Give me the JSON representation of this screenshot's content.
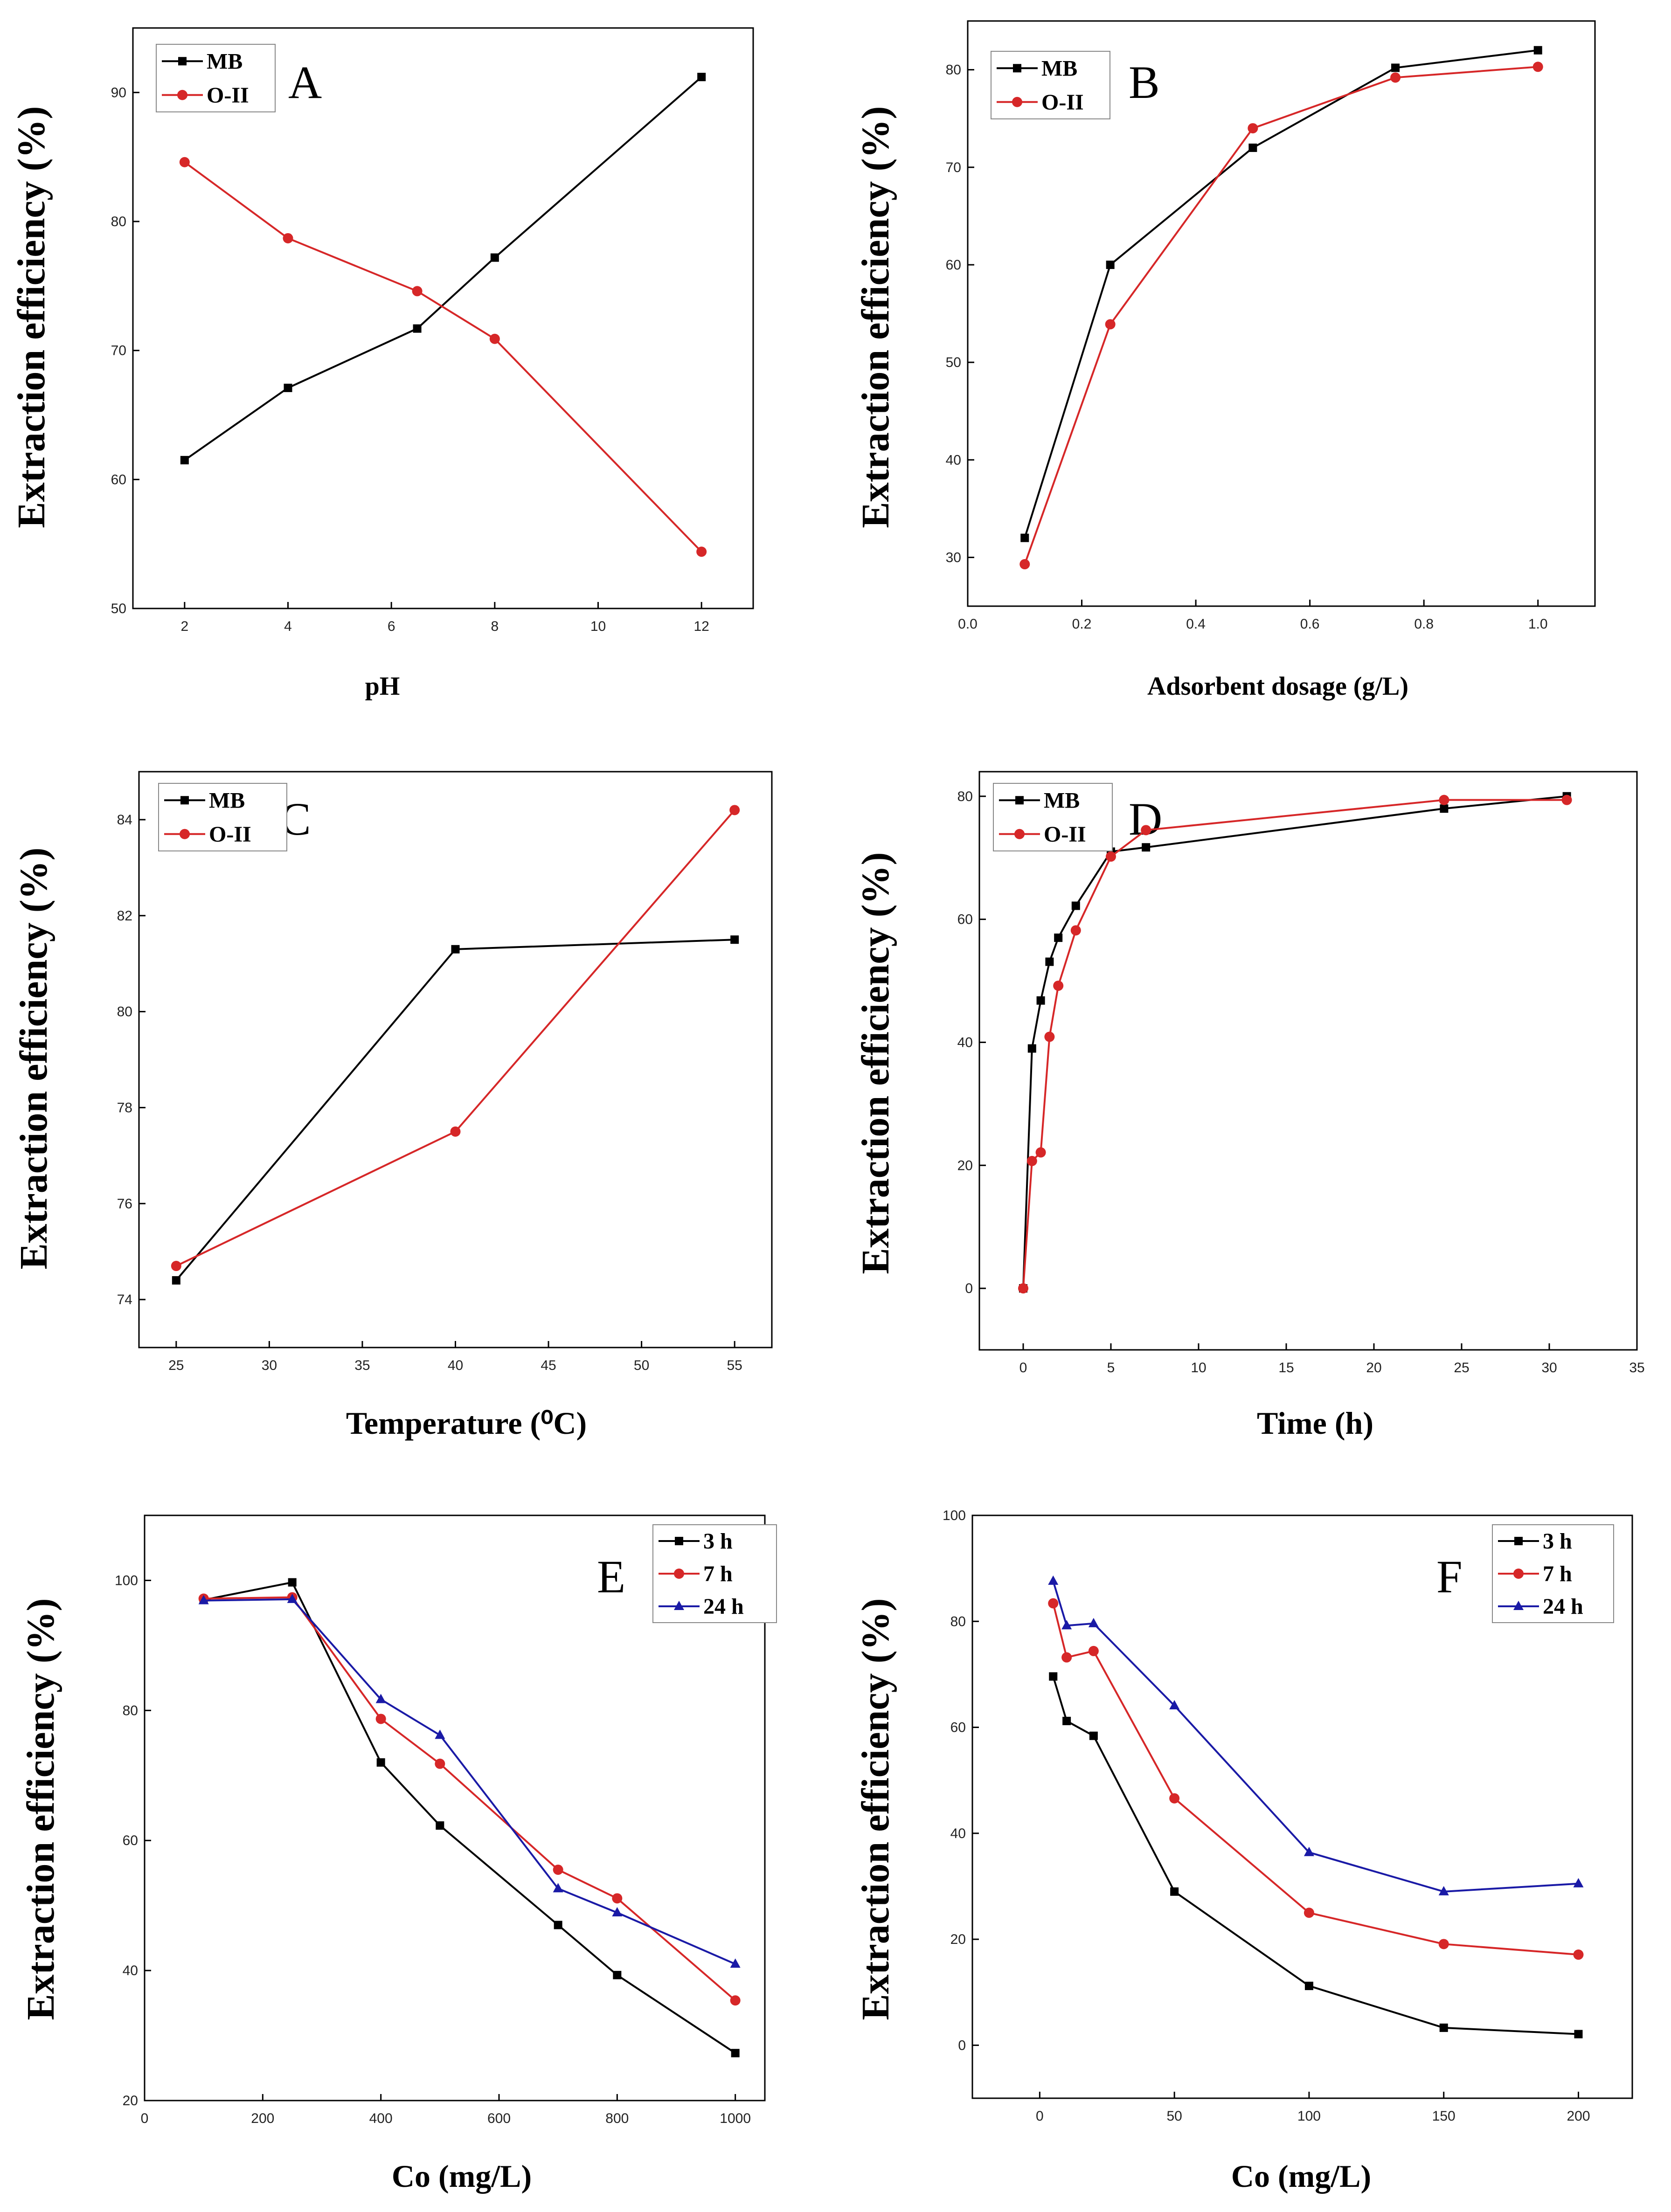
{
  "chart_data": [
    {
      "id": "A",
      "type": "line",
      "title": "",
      "panel_label": "A",
      "xlabel": "pH",
      "ylabel": "Extraction efficiency (%)",
      "xlim": [
        1,
        13
      ],
      "ylim": [
        50,
        95
      ],
      "xticks": [
        2,
        4,
        6,
        8,
        10,
        12
      ],
      "yticks": [
        50,
        60,
        70,
        80,
        90
      ],
      "legend_position": "top-left",
      "series": [
        {
          "name": "MB",
          "color": "#000000",
          "marker": "square",
          "x": [
            2,
            4,
            6.5,
            8,
            12
          ],
          "y": [
            61.5,
            67.1,
            71.7,
            77.2,
            91.2
          ]
        },
        {
          "name": "O-II",
          "color": "#d62728",
          "marker": "circle",
          "x": [
            2,
            4,
            6.5,
            8,
            12
          ],
          "y": [
            84.6,
            78.7,
            74.6,
            70.9,
            54.4
          ]
        }
      ]
    },
    {
      "id": "B",
      "type": "line",
      "title": "",
      "panel_label": "B",
      "xlabel": "Adsorbent dosage (g/L)",
      "ylabel": "Extraction efficiency (%)",
      "xlim": [
        0,
        1.1
      ],
      "ylim": [
        25,
        85
      ],
      "xticks": [
        0.0,
        0.2,
        0.4,
        0.6,
        0.8,
        1.0
      ],
      "xtick_labels": [
        "0.0",
        "0.2",
        "0.4",
        "0.6",
        "0.8",
        "1.0"
      ],
      "yticks": [
        30,
        40,
        50,
        60,
        70,
        80
      ],
      "legend_position": "top-left",
      "series": [
        {
          "name": "MB",
          "color": "#000000",
          "marker": "square",
          "x": [
            0.1,
            0.25,
            0.5,
            0.75,
            1.0
          ],
          "y": [
            32,
            60,
            72,
            80.2,
            82
          ]
        },
        {
          "name": "O-II",
          "color": "#d62728",
          "marker": "circle",
          "x": [
            0.1,
            0.25,
            0.5,
            0.75,
            1.0
          ],
          "y": [
            29.3,
            53.9,
            74,
            79.2,
            80.3
          ]
        }
      ]
    },
    {
      "id": "C",
      "type": "line",
      "title": "",
      "panel_label": "C",
      "xlabel": "Temperature (⁰C)",
      "ylabel": "Extraction efficiency (%)",
      "xlim": [
        23,
        57
      ],
      "ylim": [
        73,
        85
      ],
      "xticks": [
        25,
        30,
        35,
        40,
        45,
        50,
        55
      ],
      "yticks": [
        74,
        76,
        78,
        80,
        82,
        84
      ],
      "legend_position": "top-left",
      "series": [
        {
          "name": "MB",
          "color": "#000000",
          "marker": "square",
          "x": [
            25,
            40,
            55
          ],
          "y": [
            74.4,
            81.3,
            81.5
          ]
        },
        {
          "name": "O-II",
          "color": "#d62728",
          "marker": "circle",
          "x": [
            25,
            40,
            55
          ],
          "y": [
            74.7,
            77.5,
            84.2
          ]
        }
      ]
    },
    {
      "id": "D",
      "type": "line",
      "title": "",
      "panel_label": "D",
      "xlabel": "Time (h)",
      "ylabel": "Extraction efficiency (%)",
      "xlim": [
        -2.5,
        35
      ],
      "ylim": [
        -10,
        84
      ],
      "xticks": [
        0,
        5,
        10,
        15,
        20,
        25,
        30,
        35
      ],
      "yticks": [
        0,
        20,
        40,
        60,
        80
      ],
      "legend_position": "top-left",
      "series": [
        {
          "name": "MB",
          "color": "#000000",
          "marker": "square",
          "x": [
            0,
            0.5,
            1,
            1.5,
            2,
            3,
            5,
            7,
            24,
            31
          ],
          "y": [
            0,
            39,
            46.8,
            53.1,
            57,
            62.2,
            71,
            71.7,
            78,
            80
          ]
        },
        {
          "name": "O-II",
          "color": "#d62728",
          "marker": "circle",
          "x": [
            0,
            0.5,
            1,
            1.5,
            2,
            3,
            5,
            7,
            24,
            31
          ],
          "y": [
            0,
            20.7,
            22.1,
            40.9,
            49.2,
            58.2,
            70.2,
            74.5,
            79.4,
            79.4
          ]
        }
      ]
    },
    {
      "id": "E",
      "type": "line",
      "title": "",
      "panel_label": "E",
      "xlabel": "Co (mg/L)",
      "ylabel": "Extraction efficiency (%)",
      "xlim": [
        0,
        1050
      ],
      "ylim": [
        20,
        110
      ],
      "xticks": [
        0,
        200,
        400,
        600,
        800,
        1000
      ],
      "yticks": [
        20,
        40,
        60,
        80,
        100
      ],
      "legend_position": "top-right",
      "series": [
        {
          "name": "3 h",
          "color": "#000000",
          "marker": "square",
          "x": [
            100,
            250,
            400,
            500,
            700,
            800,
            1000
          ],
          "y": [
            97,
            99.7,
            72,
            62.3,
            47,
            39.3,
            27.3
          ]
        },
        {
          "name": "7 h",
          "color": "#d62728",
          "marker": "circle",
          "x": [
            100,
            250,
            400,
            500,
            700,
            800,
            1000
          ],
          "y": [
            97.2,
            97.4,
            78.7,
            71.8,
            55.5,
            51.1,
            35.4
          ]
        },
        {
          "name": "24 h",
          "color": "#1a1aa6",
          "marker": "triangle",
          "x": [
            100,
            250,
            400,
            500,
            700,
            800,
            1000
          ],
          "y": [
            96.9,
            97.1,
            81.7,
            76.2,
            52.6,
            48.9,
            41
          ]
        }
      ]
    },
    {
      "id": "F",
      "type": "line",
      "title": "",
      "panel_label": "F",
      "xlabel": "Co (mg/L)",
      "ylabel": "Extraction efficiency (%)",
      "xlim": [
        -25,
        220
      ],
      "ylim": [
        -10,
        100
      ],
      "xticks": [
        0,
        50,
        100,
        150,
        200
      ],
      "yticks": [
        0,
        20,
        40,
        60,
        80,
        100
      ],
      "legend_position": "top-right",
      "series": [
        {
          "name": "3 h",
          "color": "#000000",
          "marker": "square",
          "x": [
            5,
            10,
            20,
            50,
            100,
            150,
            200
          ],
          "y": [
            69.6,
            61.2,
            58.4,
            29,
            11.2,
            3.3,
            2.1
          ]
        },
        {
          "name": "7 h",
          "color": "#d62728",
          "marker": "circle",
          "x": [
            5,
            10,
            20,
            50,
            100,
            150,
            200
          ],
          "y": [
            83.4,
            73.2,
            74.4,
            46.6,
            25,
            19.1,
            17.1
          ]
        },
        {
          "name": "24 h",
          "color": "#1a1aa6",
          "marker": "triangle",
          "x": [
            5,
            10,
            20,
            50,
            100,
            150,
            200
          ],
          "y": [
            87.6,
            79.2,
            79.6,
            64.1,
            36.4,
            29,
            30.5
          ]
        }
      ]
    }
  ]
}
